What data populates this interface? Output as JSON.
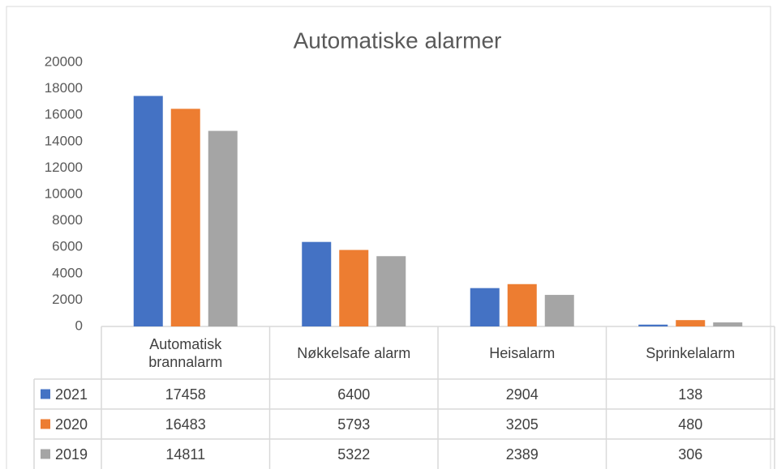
{
  "chart_data": {
    "type": "bar",
    "title": "Automatiske alarmer",
    "categories": [
      "Automatisk brannalarm",
      "Nøkkelsafe alarm",
      "Heisalarm",
      "Sprinkelalarm"
    ],
    "series": [
      {
        "name": "2021",
        "color": "#4472c4",
        "values": [
          17458,
          6400,
          2904,
          138
        ]
      },
      {
        "name": "2020",
        "color": "#ed7d31",
        "values": [
          16483,
          5793,
          3205,
          480
        ]
      },
      {
        "name": "2019",
        "color": "#a5a5a5",
        "values": [
          14811,
          5322,
          2389,
          306
        ]
      }
    ],
    "ylim": [
      0,
      20000
    ],
    "yticks": [
      0,
      2000,
      4000,
      6000,
      8000,
      10000,
      12000,
      14000,
      16000,
      18000,
      20000
    ],
    "grid": false
  }
}
